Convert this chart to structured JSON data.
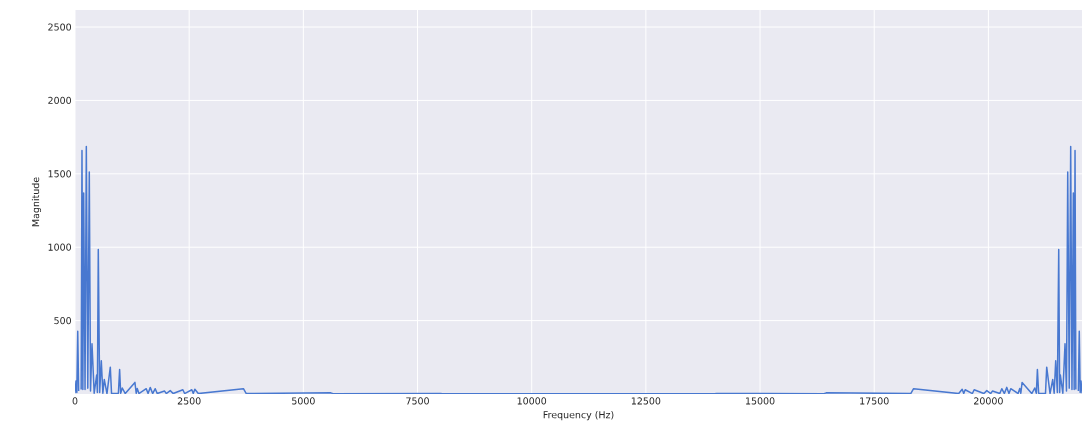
{
  "chart_data": {
    "type": "line",
    "xlabel": "Frequency (Hz)",
    "ylabel": "Magnitude",
    "x": [
      0,
      22,
      40,
      60,
      80,
      117,
      135,
      153,
      172,
      190,
      220,
      248,
      280,
      313,
      340,
      372,
      420,
      474,
      490,
      510,
      540,
      576,
      610,
      641,
      700,
      773,
      800,
      950,
      977,
      1000,
      1035,
      1100,
      1312,
      1340,
      1363,
      1400,
      1560,
      1600,
      1647,
      1700,
      1757,
      1800,
      1961,
      2000,
      2085,
      2150,
      2362,
      2400,
      2558,
      2590,
      2624,
      2700,
      3688,
      3750,
      5600,
      5650,
      8000,
      8050,
      14000,
      14050,
      16400,
      16450,
      18300,
      18362,
      19350,
      19426,
      19460,
      19492,
      19650,
      19688,
      19900,
      19965,
      20050,
      20089,
      20250,
      20293,
      20350,
      20403,
      20450,
      20490,
      20650,
      20687,
      20710,
      20738,
      20950,
      21015,
      21050,
      21073,
      21100,
      21250,
      21277,
      21350,
      21409,
      21440,
      21474,
      21510,
      21540,
      21560,
      21576,
      21630,
      21678,
      21710,
      21737,
      21770,
      21802,
      21830,
      21860,
      21878,
      21897,
      21915,
      21933,
      21970,
      21990,
      22010,
      22028,
      22050
    ],
    "values": [
      5,
      88,
      10,
      427,
      20,
      null,
      30,
      1659,
      30,
      1370,
      30,
      1686,
      40,
      1512,
      20,
      343,
      5,
      129,
      10,
      985,
      10,
      226,
      5,
      99,
      3,
      183,
      3,
      5,
      167,
      5,
      41,
      3,
      79,
      5,
      38,
      3,
      36,
      3,
      45,
      3,
      36,
      3,
      20,
      3,
      23,
      3,
      29,
      3,
      29,
      3,
      32,
      3,
      36,
      3,
      8,
      2,
      4,
      2,
      2,
      4,
      2,
      8,
      3,
      36,
      3,
      32,
      3,
      29,
      3,
      29,
      3,
      23,
      3,
      20,
      3,
      36,
      3,
      45,
      3,
      36,
      3,
      38,
      5,
      79,
      3,
      41,
      5,
      167,
      5,
      3,
      183,
      3,
      99,
      5,
      226,
      10,
      985,
      10,
      129,
      5,
      343,
      20,
      1512,
      40,
      1686,
      30,
      1370,
      30,
      1659,
      30,
      null,
      20,
      427,
      10,
      88,
      5
    ],
    "color": "#4878d0",
    "xlim": [
      0,
      22050
    ],
    "ylim": [
      0,
      2616
    ],
    "xticks": [
      0,
      2500,
      5000,
      7500,
      10000,
      12500,
      15000,
      17500,
      20000
    ],
    "yticks": [
      500,
      1000,
      1500,
      2000,
      2500
    ],
    "grid": true,
    "marker": "none",
    "line_style": "solid"
  }
}
